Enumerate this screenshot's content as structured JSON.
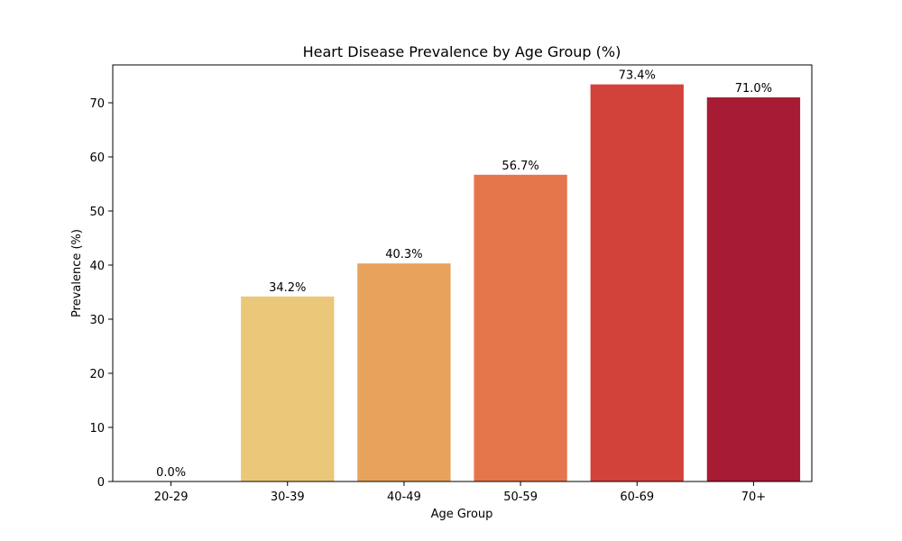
{
  "chart_data": {
    "type": "bar",
    "title": "Heart Disease Prevalence by Age Group (%)",
    "xlabel": "Age Group",
    "ylabel": "Prevalence (%)",
    "categories": [
      "20-29",
      "30-39",
      "40-49",
      "50-59",
      "60-69",
      "70+"
    ],
    "values": [
      0.0,
      34.2,
      40.3,
      56.7,
      73.4,
      71.0
    ],
    "value_labels": [
      "0.0%",
      "34.2%",
      "40.3%",
      "56.7%",
      "73.4%",
      "71.0%"
    ],
    "colors": [
      "#fbf3b0",
      "#ebc77a",
      "#e7a35c",
      "#e5764c",
      "#d2423a",
      "#a71c34"
    ],
    "ylim": [
      0,
      77
    ],
    "yticks": [
      0,
      10,
      20,
      30,
      40,
      50,
      60,
      70
    ],
    "grid": false,
    "legend": "none"
  }
}
